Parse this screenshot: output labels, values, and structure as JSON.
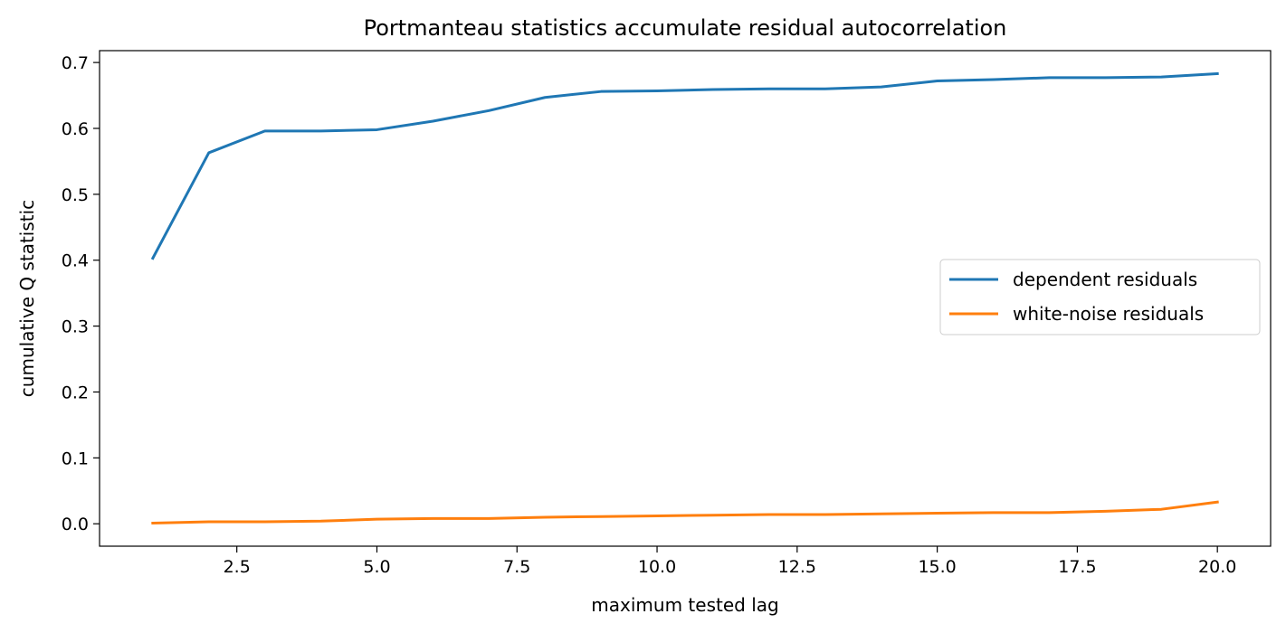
{
  "chart_data": {
    "type": "line",
    "title": "Portmanteau statistics accumulate residual autocorrelation",
    "xlabel": "maximum tested lag",
    "ylabel": "cumulative Q statistic",
    "xlim": [
      0.05,
      20.95
    ],
    "ylim": [
      -0.034,
      0.718
    ],
    "xticks": [
      2.5,
      5.0,
      7.5,
      10.0,
      12.5,
      15.0,
      17.5,
      20.0
    ],
    "xtick_labels": [
      "2.5",
      "5.0",
      "7.5",
      "10.0",
      "12.5",
      "15.0",
      "17.5",
      "20.0"
    ],
    "yticks": [
      0.0,
      0.1,
      0.2,
      0.3,
      0.4,
      0.5,
      0.6,
      0.7
    ],
    "ytick_labels": [
      "0.0",
      "0.1",
      "0.2",
      "0.3",
      "0.4",
      "0.5",
      "0.6",
      "0.7"
    ],
    "grid": false,
    "legend_position": "center-right",
    "x": [
      1,
      2,
      3,
      4,
      5,
      6,
      7,
      8,
      9,
      10,
      11,
      12,
      13,
      14,
      15,
      16,
      17,
      18,
      19,
      20
    ],
    "series": [
      {
        "name": "dependent residuals",
        "color": "#1f77b4",
        "values": [
          0.403,
          0.563,
          0.596,
          0.596,
          0.598,
          0.611,
          0.627,
          0.647,
          0.656,
          0.657,
          0.659,
          0.66,
          0.66,
          0.663,
          0.672,
          0.674,
          0.677,
          0.677,
          0.678,
          0.683
        ]
      },
      {
        "name": "white-noise residuals",
        "color": "#ff7f0e",
        "values": [
          0.001,
          0.003,
          0.003,
          0.004,
          0.007,
          0.008,
          0.008,
          0.01,
          0.011,
          0.012,
          0.013,
          0.014,
          0.014,
          0.015,
          0.016,
          0.017,
          0.017,
          0.019,
          0.022,
          0.033
        ]
      }
    ]
  }
}
